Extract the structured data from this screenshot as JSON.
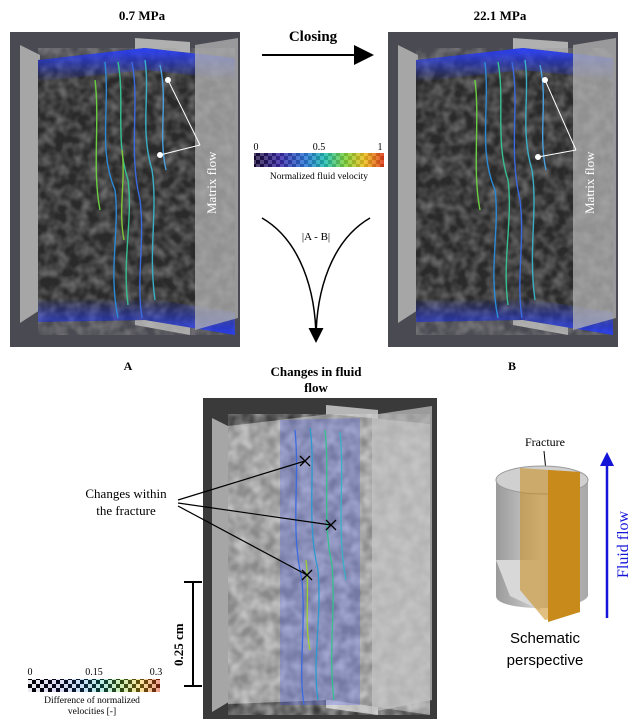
{
  "panel_a": {
    "pressure": "0.7 MPa",
    "label": "A",
    "annotation": "Matrix flow"
  },
  "panel_b": {
    "pressure": "22.1 MPa",
    "label": "B",
    "annotation": "Matrix flow"
  },
  "closing_label": "Closing",
  "difference_label": "|A - B|",
  "velocity_colorbar": {
    "ticks": [
      "0",
      "0.5",
      "1"
    ],
    "caption": "Normalized fluid velocity"
  },
  "changes_panel": {
    "title_line1": "Changes in fluid",
    "title_line2": "flow",
    "annotation_line1": "Changes within",
    "annotation_line2": "the fracture",
    "scale_label": "0.25 cm"
  },
  "difference_colorbar": {
    "ticks": [
      "0",
      "0.15",
      "0.3"
    ],
    "caption_line1": "Difference of normalized",
    "caption_line2": "velocities [-]"
  },
  "schematic": {
    "fracture_label": "Fracture",
    "caption_line1": "Schematic",
    "caption_line2": "perspective",
    "flow_label": "Fluid flow"
  },
  "colors": {
    "flow_arrow": "#1515d8",
    "fracture_plane": "#c88a1a",
    "cylinder": "#b8b8b8",
    "background_volume": "#3a3a3a"
  }
}
